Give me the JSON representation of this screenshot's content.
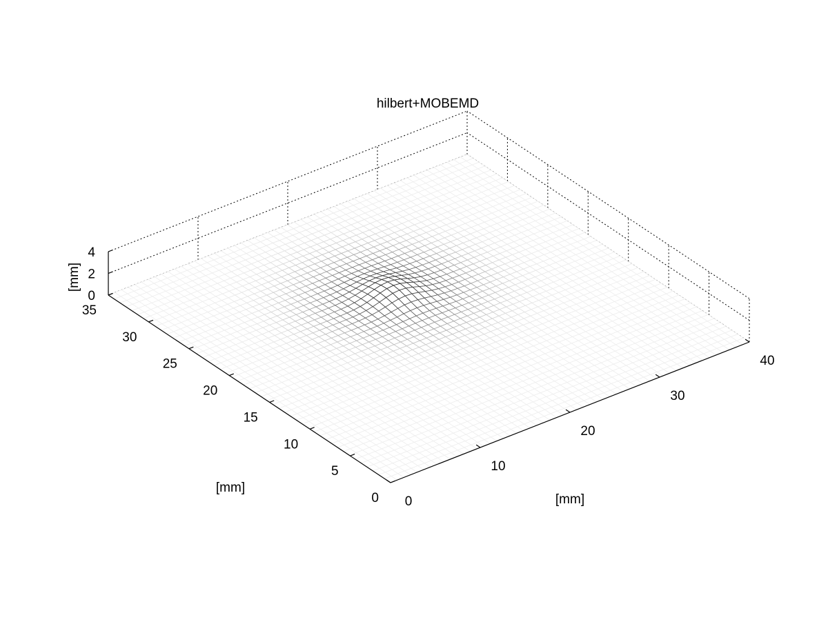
{
  "chart_data": {
    "type": "surface",
    "title": "hilbert+MOBEMD",
    "xlabel": "[mm]",
    "ylabel": "[mm]",
    "zlabel": "[mm]",
    "xlim": [
      0,
      40
    ],
    "ylim": [
      0,
      35
    ],
    "zlim": [
      0,
      4
    ],
    "x_ticks": [
      0,
      10,
      20,
      30,
      40
    ],
    "y_ticks": [
      0,
      5,
      10,
      15,
      20,
      25,
      30,
      35
    ],
    "z_ticks": [
      0,
      2,
      4
    ],
    "x_tick_labels": [
      "0",
      "10",
      "20",
      "30",
      "40"
    ],
    "y_tick_labels": [
      "0",
      "5",
      "10",
      "15",
      "20",
      "25",
      "30",
      "35"
    ],
    "z_tick_labels": [
      "0",
      "2",
      "4"
    ],
    "grid": true,
    "surface_extent": {
      "x": [
        0,
        40
      ],
      "y": [
        0,
        35
      ]
    },
    "surface_baseline_z": 0,
    "feature": {
      "description": "single raised indentation region",
      "center_x": 20,
      "center_y": 22,
      "peak_z": 0.9,
      "width_x": 7,
      "width_y": 7
    },
    "colormap": "gray"
  }
}
